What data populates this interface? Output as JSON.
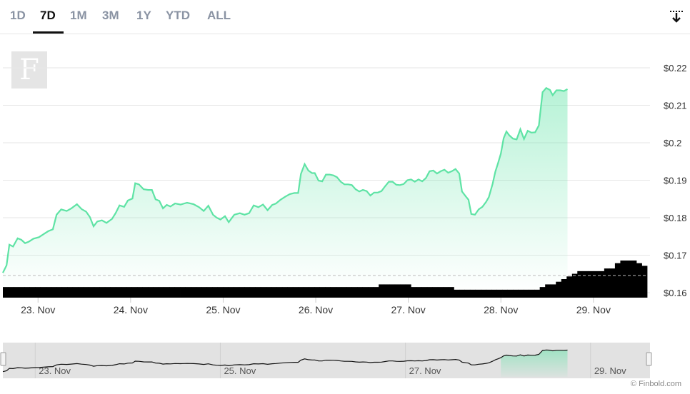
{
  "range_tabs": [
    "1D",
    "7D",
    "1M",
    "3M",
    "1Y",
    "YTD",
    "ALL"
  ],
  "active_tab": "7D",
  "logo_letter": "F",
  "icons": {
    "download": "download-arrow-icon",
    "navigator_handle": "grip-handle-icon"
  },
  "colors": {
    "line": "#5fe3a5",
    "area_top": "#5fe3a5",
    "volume": "#000000",
    "grid": "#e6e6e6",
    "navigator_bg": "#e2e2e2"
  },
  "credit": "© Finbold.com",
  "chart_data": {
    "type": "line",
    "x_tick_labels": [
      "23. Nov",
      "24. Nov",
      "25. Nov",
      "26. Nov",
      "27. Nov",
      "28. Nov",
      "29. Nov"
    ],
    "y_tick_labels": [
      "$0.16",
      "$0.17",
      "$0.18",
      "$0.19",
      "$0.2",
      "$0.21",
      "$0.22"
    ],
    "ylim": [
      0.16,
      0.22
    ],
    "xlim_days": [
      22.62,
      29.58
    ],
    "series": [
      {
        "values": [
          [
            22.62,
            0.1653
          ],
          [
            22.66,
            0.1673
          ],
          [
            22.69,
            0.1728
          ],
          [
            22.73,
            0.1723
          ],
          [
            22.78,
            0.1745
          ],
          [
            22.82,
            0.1741
          ],
          [
            22.86,
            0.1732
          ],
          [
            22.9,
            0.1736
          ],
          [
            22.95,
            0.1744
          ],
          [
            23.01,
            0.1748
          ],
          [
            23.06,
            0.1756
          ],
          [
            23.11,
            0.1764
          ],
          [
            23.16,
            0.1769
          ],
          [
            23.2,
            0.1808
          ],
          [
            23.25,
            0.1822
          ],
          [
            23.31,
            0.1818
          ],
          [
            23.36,
            0.1825
          ],
          [
            23.42,
            0.1836
          ],
          [
            23.47,
            0.1823
          ],
          [
            23.52,
            0.1816
          ],
          [
            23.56,
            0.1802
          ],
          [
            23.6,
            0.1777
          ],
          [
            23.64,
            0.179
          ],
          [
            23.69,
            0.1793
          ],
          [
            23.74,
            0.1786
          ],
          [
            23.8,
            0.1797
          ],
          [
            23.84,
            0.1813
          ],
          [
            23.88,
            0.1833
          ],
          [
            23.93,
            0.1829
          ],
          [
            23.97,
            0.1846
          ],
          [
            24.02,
            0.1851
          ],
          [
            24.05,
            0.1892
          ],
          [
            24.09,
            0.1889
          ],
          [
            24.14,
            0.1876
          ],
          [
            24.19,
            0.1874
          ],
          [
            24.23,
            0.1874
          ],
          [
            24.27,
            0.1849
          ],
          [
            24.31,
            0.1845
          ],
          [
            24.35,
            0.1825
          ],
          [
            24.39,
            0.1834
          ],
          [
            24.43,
            0.183
          ],
          [
            24.48,
            0.1838
          ],
          [
            24.54,
            0.1835
          ],
          [
            24.61,
            0.184
          ],
          [
            24.68,
            0.1836
          ],
          [
            24.74,
            0.1828
          ],
          [
            24.79,
            0.1818
          ],
          [
            24.84,
            0.1832
          ],
          [
            24.89,
            0.1808
          ],
          [
            24.93,
            0.18
          ],
          [
            24.97,
            0.1795
          ],
          [
            25.02,
            0.1804
          ],
          [
            25.06,
            0.1788
          ],
          [
            25.12,
            0.1808
          ],
          [
            25.18,
            0.1812
          ],
          [
            25.23,
            0.1808
          ],
          [
            25.28,
            0.1812
          ],
          [
            25.33,
            0.1833
          ],
          [
            25.38,
            0.1828
          ],
          [
            25.43,
            0.1835
          ],
          [
            25.48,
            0.182
          ],
          [
            25.53,
            0.1834
          ],
          [
            25.57,
            0.1838
          ],
          [
            25.62,
            0.1848
          ],
          [
            25.67,
            0.1856
          ],
          [
            25.72,
            0.1863
          ],
          [
            25.77,
            0.1866
          ],
          [
            25.81,
            0.1866
          ],
          [
            25.84,
            0.1917
          ],
          [
            25.88,
            0.1943
          ],
          [
            25.92,
            0.1926
          ],
          [
            25.96,
            0.1919
          ],
          [
            25.99,
            0.1919
          ],
          [
            26.03,
            0.1899
          ],
          [
            26.07,
            0.1897
          ],
          [
            26.11,
            0.1915
          ],
          [
            26.15,
            0.1915
          ],
          [
            26.19,
            0.1913
          ],
          [
            26.23,
            0.1908
          ],
          [
            26.27,
            0.1896
          ],
          [
            26.31,
            0.1889
          ],
          [
            26.35,
            0.1889
          ],
          [
            26.39,
            0.1887
          ],
          [
            26.43,
            0.1876
          ],
          [
            26.47,
            0.187
          ],
          [
            26.51,
            0.1874
          ],
          [
            26.55,
            0.1871
          ],
          [
            26.59,
            0.1859
          ],
          [
            26.63,
            0.1867
          ],
          [
            26.67,
            0.1867
          ],
          [
            26.71,
            0.1871
          ],
          [
            26.75,
            0.1884
          ],
          [
            26.79,
            0.1896
          ],
          [
            26.83,
            0.1896
          ],
          [
            26.87,
            0.1888
          ],
          [
            26.91,
            0.1887
          ],
          [
            26.95,
            0.189
          ],
          [
            26.99,
            0.19
          ],
          [
            27.03,
            0.1902
          ],
          [
            27.07,
            0.1896
          ],
          [
            27.11,
            0.1902
          ],
          [
            27.15,
            0.1897
          ],
          [
            27.19,
            0.1906
          ],
          [
            27.23,
            0.1924
          ],
          [
            27.27,
            0.1926
          ],
          [
            27.31,
            0.1918
          ],
          [
            27.35,
            0.1924
          ],
          [
            27.39,
            0.1928
          ],
          [
            27.43,
            0.192
          ],
          [
            27.47,
            0.1924
          ],
          [
            27.51,
            0.193
          ],
          [
            27.55,
            0.1918
          ],
          [
            27.58,
            0.187
          ],
          [
            27.62,
            0.1857
          ],
          [
            27.65,
            0.1848
          ],
          [
            27.68,
            0.181
          ],
          [
            27.72,
            0.1808
          ],
          [
            27.76,
            0.1822
          ],
          [
            27.8,
            0.1829
          ],
          [
            27.84,
            0.1842
          ],
          [
            27.87,
            0.1855
          ],
          [
            27.91,
            0.189
          ],
          [
            27.94,
            0.1923
          ],
          [
            27.97,
            0.1946
          ],
          [
            28.0,
            0.1971
          ],
          [
            28.03,
            0.2012
          ],
          [
            28.06,
            0.203
          ],
          [
            28.09,
            0.202
          ],
          [
            28.13,
            0.2011
          ],
          [
            28.17,
            0.2009
          ],
          [
            28.21,
            0.2036
          ],
          [
            28.25,
            0.201
          ],
          [
            28.29,
            0.2032
          ],
          [
            28.33,
            0.2027
          ],
          [
            28.37,
            0.2028
          ],
          [
            28.41,
            0.2046
          ],
          [
            28.45,
            0.2135
          ],
          [
            28.49,
            0.2146
          ],
          [
            28.53,
            0.2141
          ],
          [
            28.56,
            0.2127
          ],
          [
            28.6,
            0.214
          ],
          [
            28.64,
            0.214
          ],
          [
            28.68,
            0.2138
          ],
          [
            28.72,
            0.2143
          ]
        ]
      }
    ],
    "volume": [
      4,
      4,
      4,
      4,
      4,
      4,
      4,
      4,
      4,
      4,
      4,
      4,
      4,
      4,
      4,
      4,
      4,
      4,
      4,
      4,
      4,
      4,
      4,
      4,
      4,
      4,
      4,
      4,
      4,
      4,
      4,
      4,
      4,
      4,
      4,
      4,
      4,
      4,
      4,
      4,
      4,
      4,
      4,
      4,
      4,
      4,
      4,
      4,
      4,
      4,
      4,
      4,
      4,
      4,
      4,
      4,
      4,
      4,
      4,
      4,
      4,
      4,
      4,
      4,
      4,
      4,
      4,
      4,
      4,
      4,
      5,
      5,
      5,
      5,
      5,
      5,
      4,
      4,
      4,
      4,
      4,
      4,
      4,
      4,
      3,
      3,
      3,
      3,
      3,
      3,
      3,
      3,
      3,
      3,
      3,
      3,
      3,
      3,
      3,
      3,
      4,
      5,
      5,
      6,
      7,
      8,
      9,
      10,
      10,
      10,
      10,
      10,
      11,
      11,
      13,
      14,
      14,
      14,
      13,
      12
    ],
    "navigator_labels": [
      "23. Nov",
      "25. Nov",
      "27. Nov",
      "29. Nov"
    ],
    "grid": true,
    "legend": "none"
  }
}
